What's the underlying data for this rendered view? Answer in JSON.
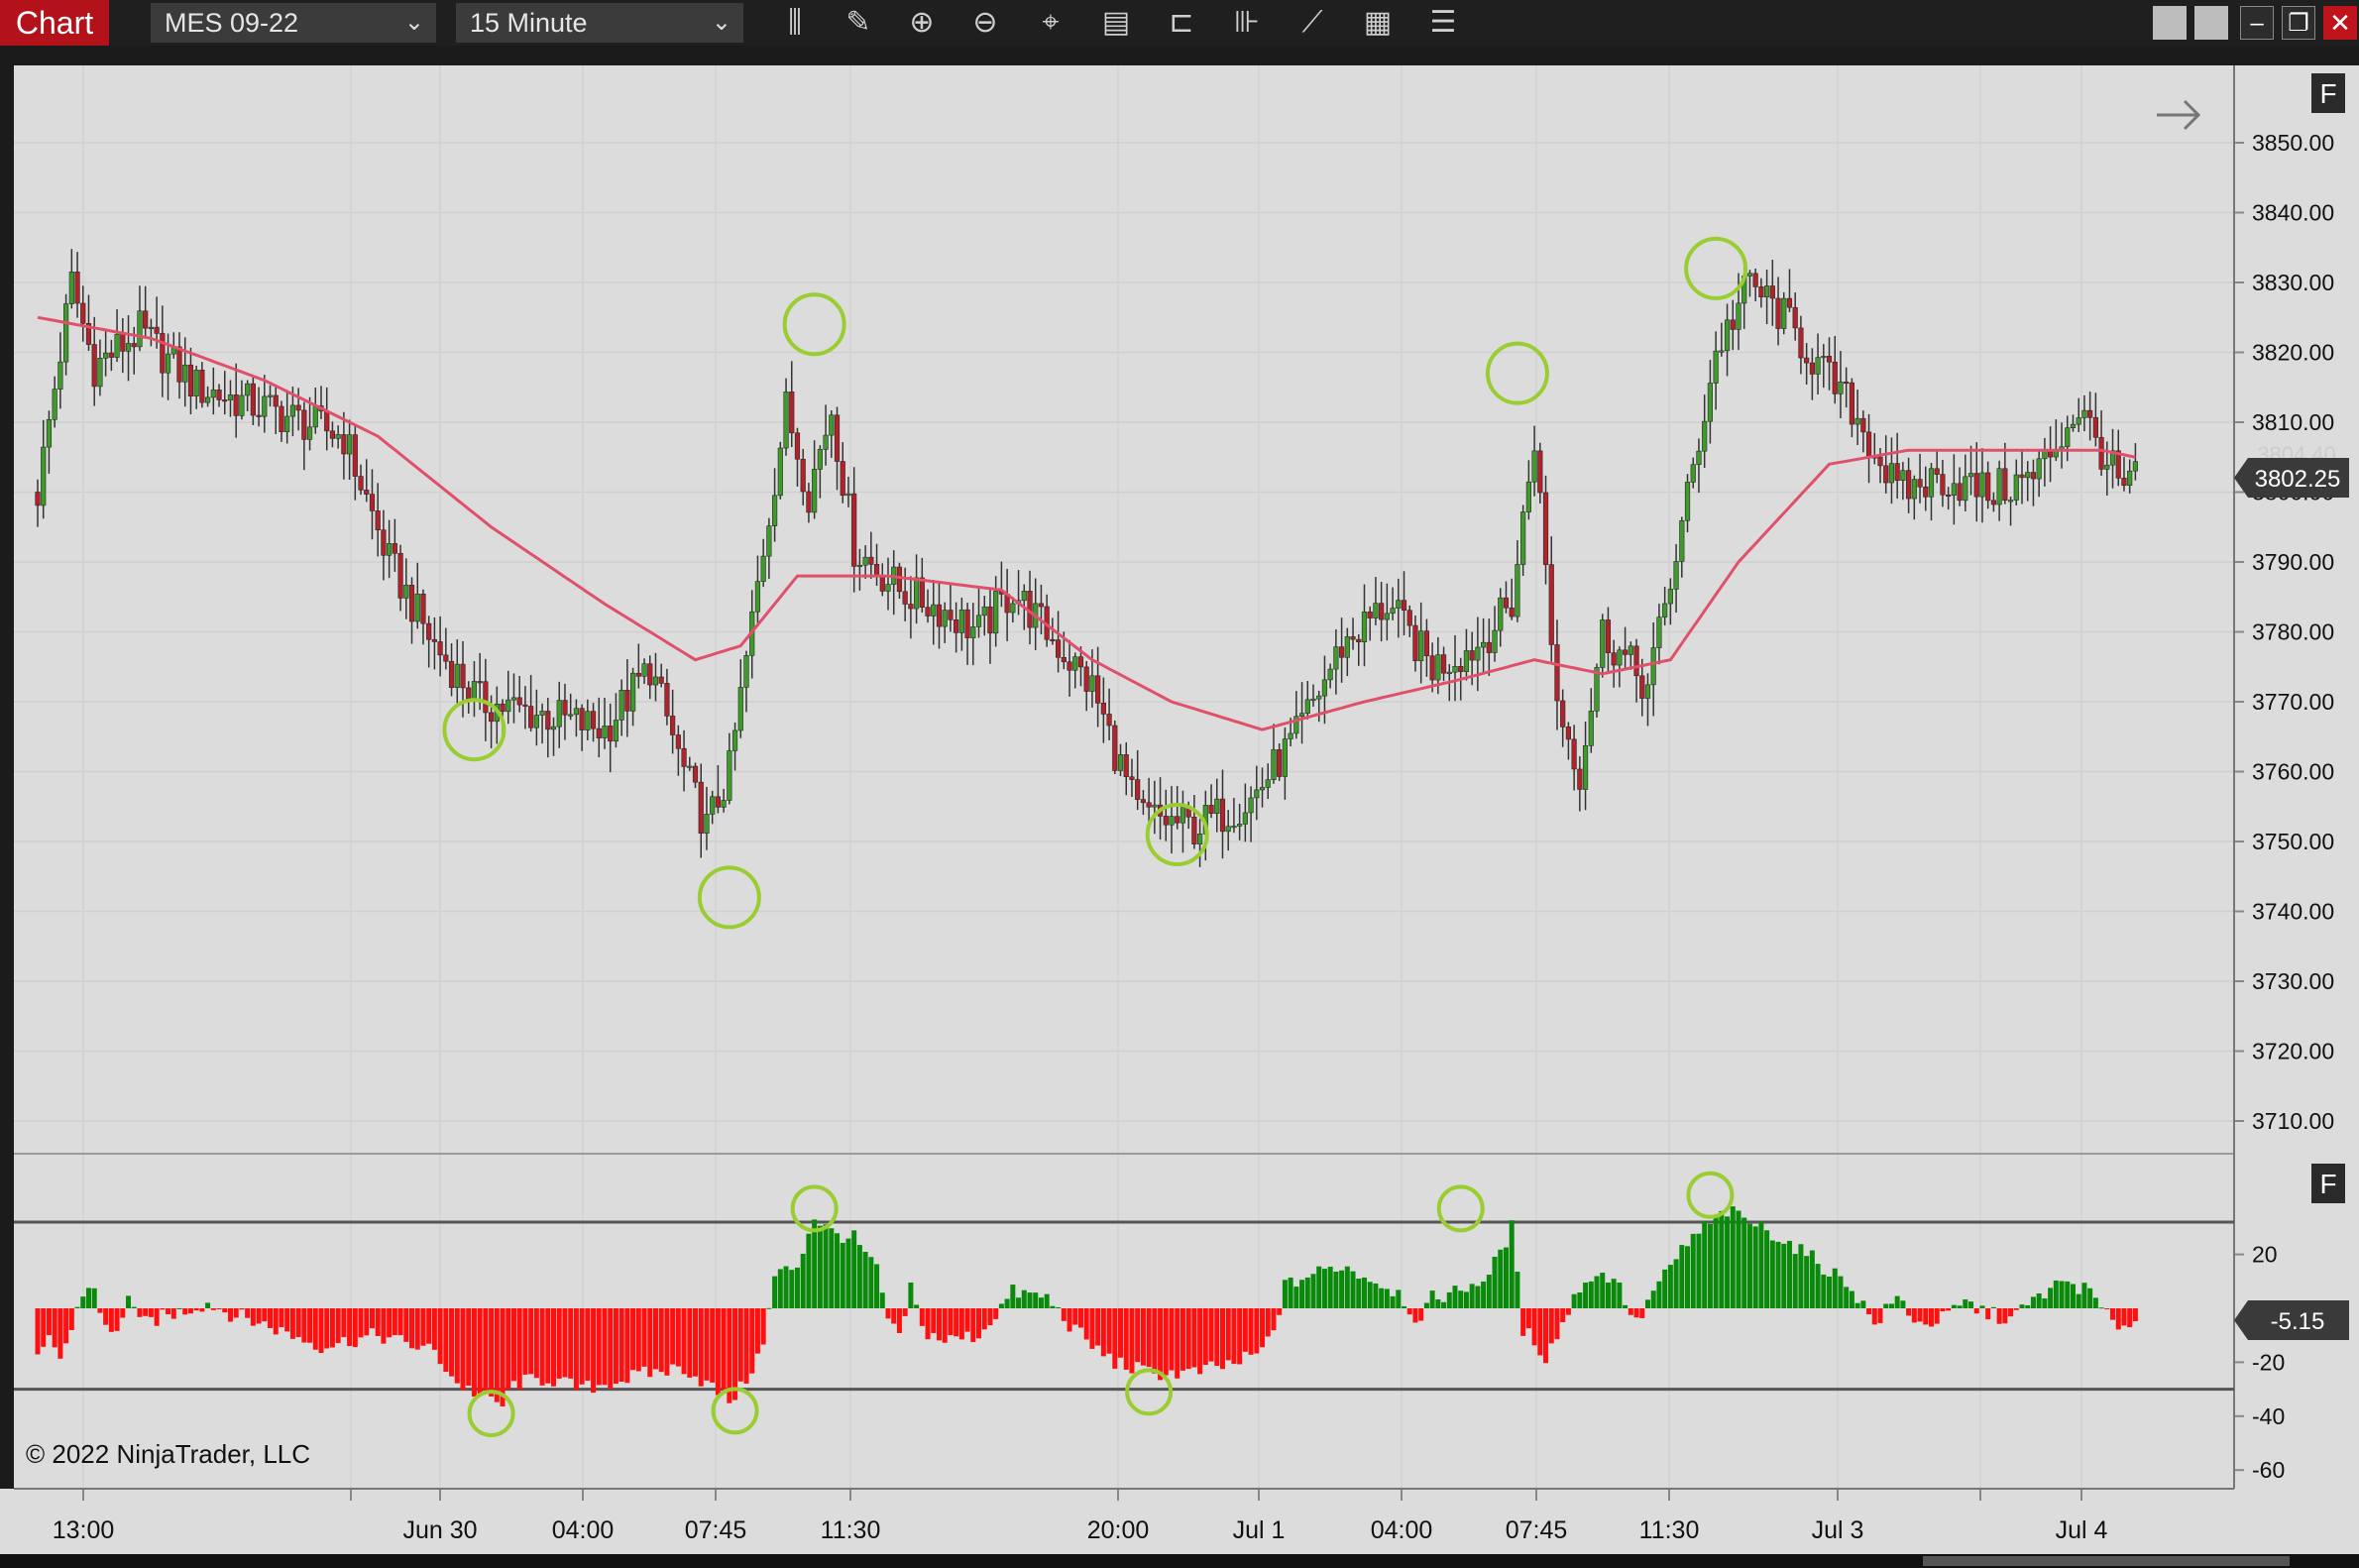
{
  "toolbar": {
    "chart_tab": "Chart",
    "instrument": "MES 09-22",
    "interval": "15 Minute",
    "tools": [
      "bar-type-icon",
      "pencil-icon",
      "zoom-in-icon",
      "zoom-out-icon",
      "crosshair-icon",
      "data-box-icon",
      "properties-icon",
      "indicators-icon",
      "strategies-icon",
      "templates-icon",
      "list-icon"
    ]
  },
  "copyright": "© 2022 NinjaTrader, LLC",
  "colors": {
    "background": "#dcdcdc",
    "up_candle": "#3f9a2c",
    "down_candle": "#b0232a",
    "ma_line": "#e0506a",
    "hist_up": "#0a8a0a",
    "hist_down": "#ff0f0f",
    "circle": "#9acd32"
  },
  "chart_data": [
    {
      "type": "candlestick",
      "instrument": "MES 09-22",
      "interval": "15 Minute",
      "ylim": [
        3704,
        3860
      ],
      "y_ticks": [
        "3850.00",
        "3840.00",
        "3830.00",
        "3820.00",
        "3810.00",
        "3800.00",
        "3790.00",
        "3780.00",
        "3770.00",
        "3760.00",
        "3750.00",
        "3740.00",
        "3730.00",
        "3720.00",
        "3710.00"
      ],
      "x_labels": [
        "13:00",
        "Jun 30",
        "04:00",
        "07:45",
        "11:30",
        "20:00",
        "Jul 1",
        "04:00",
        "07:45",
        "11:30",
        "Jul 3",
        "Jul 4"
      ],
      "last_price": "3802.25",
      "prev_price_label": "3804.40",
      "series": [
        {
          "name": "Close",
          "anchors": [
            [
              0,
              3800
            ],
            [
              2,
              3810
            ],
            [
              6,
              3830
            ],
            [
              10,
              3818
            ],
            [
              18,
              3823
            ],
            [
              28,
              3815
            ],
            [
              40,
              3812
            ],
            [
              54,
              3808
            ],
            [
              62,
              3790
            ],
            [
              70,
              3778
            ],
            [
              78,
              3770
            ],
            [
              90,
              3768
            ],
            [
              100,
              3766
            ],
            [
              108,
              3775
            ],
            [
              114,
              3760
            ],
            [
              118,
              3752
            ],
            [
              122,
              3760
            ],
            [
              128,
              3792
            ],
            [
              132,
              3812
            ],
            [
              136,
              3800
            ],
            [
              140,
              3812
            ],
            [
              144,
              3792
            ],
            [
              152,
              3786
            ],
            [
              160,
              3783
            ],
            [
              166,
              3780
            ],
            [
              172,
              3786
            ],
            [
              178,
              3780
            ],
            [
              186,
              3772
            ],
            [
              194,
              3754
            ],
            [
              204,
              3752
            ],
            [
              214,
              3756
            ],
            [
              222,
              3765
            ],
            [
              230,
              3778
            ],
            [
              238,
              3784
            ],
            [
              246,
              3775
            ],
            [
              254,
              3778
            ],
            [
              260,
              3784
            ],
            [
              264,
              3808
            ],
            [
              268,
              3770
            ],
            [
              272,
              3760
            ],
            [
              276,
              3780
            ],
            [
              284,
              3772
            ],
            [
              290,
              3795
            ],
            [
              296,
              3820
            ],
            [
              302,
              3830
            ],
            [
              308,
              3825
            ],
            [
              314,
              3818
            ],
            [
              320,
              3812
            ],
            [
              328,
              3800
            ],
            [
              336,
              3802
            ],
            [
              344,
              3800
            ],
            [
              352,
              3802
            ],
            [
              360,
              3812
            ],
            [
              364,
              3806
            ],
            [
              368,
              3800
            ],
            [
              370,
              3802
            ]
          ]
        },
        {
          "name": "Moving Average",
          "anchors": [
            [
              0,
              3825
            ],
            [
              20,
              3822
            ],
            [
              40,
              3816
            ],
            [
              60,
              3808
            ],
            [
              80,
              3795
            ],
            [
              100,
              3784
            ],
            [
              116,
              3776
            ],
            [
              124,
              3778
            ],
            [
              134,
              3788
            ],
            [
              150,
              3788
            ],
            [
              170,
              3786
            ],
            [
              186,
              3776
            ],
            [
              200,
              3770
            ],
            [
              216,
              3766
            ],
            [
              234,
              3770
            ],
            [
              250,
              3773
            ],
            [
              264,
              3776
            ],
            [
              276,
              3774
            ],
            [
              288,
              3776
            ],
            [
              300,
              3790
            ],
            [
              316,
              3804
            ],
            [
              330,
              3806
            ],
            [
              350,
              3806
            ],
            [
              364,
              3806
            ],
            [
              370,
              3805
            ]
          ]
        }
      ],
      "annotations": [
        {
          "shape": "circle",
          "x": 77,
          "y": 3766
        },
        {
          "shape": "circle",
          "x": 122,
          "y": 3742
        },
        {
          "shape": "circle",
          "x": 137,
          "y": 3824
        },
        {
          "shape": "circle",
          "x": 201,
          "y": 3751
        },
        {
          "shape": "circle",
          "x": 261,
          "y": 3817
        },
        {
          "shape": "circle",
          "x": 296,
          "y": 3832
        }
      ]
    },
    {
      "type": "bar",
      "name": "Histogram",
      "ylim": [
        -66,
        44
      ],
      "y_ticks": [
        "20",
        "-20",
        "-40",
        "-60"
      ],
      "levels": [
        32,
        -30
      ],
      "last_value": "-5.15",
      "anchors": [
        [
          0,
          -20
        ],
        [
          2,
          -12
        ],
        [
          4,
          -18
        ],
        [
          6,
          -8
        ],
        [
          8,
          6
        ],
        [
          10,
          8
        ],
        [
          12,
          -8
        ],
        [
          14,
          -10
        ],
        [
          16,
          6
        ],
        [
          18,
          -6
        ],
        [
          24,
          -2
        ],
        [
          30,
          2
        ],
        [
          34,
          -2
        ],
        [
          40,
          -6
        ],
        [
          50,
          -14
        ],
        [
          60,
          -10
        ],
        [
          70,
          -16
        ],
        [
          74,
          -28
        ],
        [
          78,
          -32
        ],
        [
          82,
          -36
        ],
        [
          84,
          -28
        ],
        [
          90,
          -26
        ],
        [
          96,
          -30
        ],
        [
          100,
          -28
        ],
        [
          108,
          -24
        ],
        [
          114,
          -22
        ],
        [
          118,
          -28
        ],
        [
          122,
          -34
        ],
        [
          124,
          -30
        ],
        [
          128,
          -14
        ],
        [
          130,
          12
        ],
        [
          134,
          16
        ],
        [
          137,
          34
        ],
        [
          140,
          28
        ],
        [
          144,
          26
        ],
        [
          148,
          14
        ],
        [
          150,
          -4
        ],
        [
          152,
          -12
        ],
        [
          154,
          8
        ],
        [
          156,
          -8
        ],
        [
          160,
          -12
        ],
        [
          166,
          -10
        ],
        [
          172,
          6
        ],
        [
          178,
          4
        ],
        [
          182,
          -6
        ],
        [
          186,
          -14
        ],
        [
          190,
          -20
        ],
        [
          196,
          -24
        ],
        [
          204,
          -24
        ],
        [
          212,
          -20
        ],
        [
          216,
          -16
        ],
        [
          218,
          -8
        ],
        [
          220,
          8
        ],
        [
          224,
          12
        ],
        [
          230,
          16
        ],
        [
          236,
          10
        ],
        [
          240,
          6
        ],
        [
          244,
          -6
        ],
        [
          246,
          4
        ],
        [
          250,
          6
        ],
        [
          256,
          12
        ],
        [
          260,
          30
        ],
        [
          262,
          -8
        ],
        [
          264,
          -12
        ],
        [
          266,
          -18
        ],
        [
          268,
          -10
        ],
        [
          272,
          8
        ],
        [
          274,
          12
        ],
        [
          278,
          12
        ],
        [
          282,
          -6
        ],
        [
          286,
          10
        ],
        [
          288,
          14
        ],
        [
          290,
          22
        ],
        [
          294,
          30
        ],
        [
          298,
          36
        ],
        [
          302,
          32
        ],
        [
          306,
          28
        ],
        [
          312,
          20
        ],
        [
          316,
          14
        ],
        [
          320,
          8
        ],
        [
          324,
          -6
        ],
        [
          328,
          4
        ],
        [
          332,
          -6
        ],
        [
          336,
          -4
        ],
        [
          340,
          2
        ],
        [
          344,
          -2
        ],
        [
          348,
          -4
        ],
        [
          354,
          6
        ],
        [
          358,
          10
        ],
        [
          362,
          6
        ],
        [
          366,
          -6
        ],
        [
          370,
          -5
        ]
      ],
      "annotations": [
        {
          "shape": "circle",
          "x": 80,
          "y": -39
        },
        {
          "shape": "circle",
          "x": 123,
          "y": -38
        },
        {
          "shape": "circle",
          "x": 137,
          "y": 37
        },
        {
          "shape": "circle",
          "x": 196,
          "y": -31
        },
        {
          "shape": "circle",
          "x": 251,
          "y": 37
        },
        {
          "shape": "circle",
          "x": 295,
          "y": 42
        }
      ]
    }
  ]
}
